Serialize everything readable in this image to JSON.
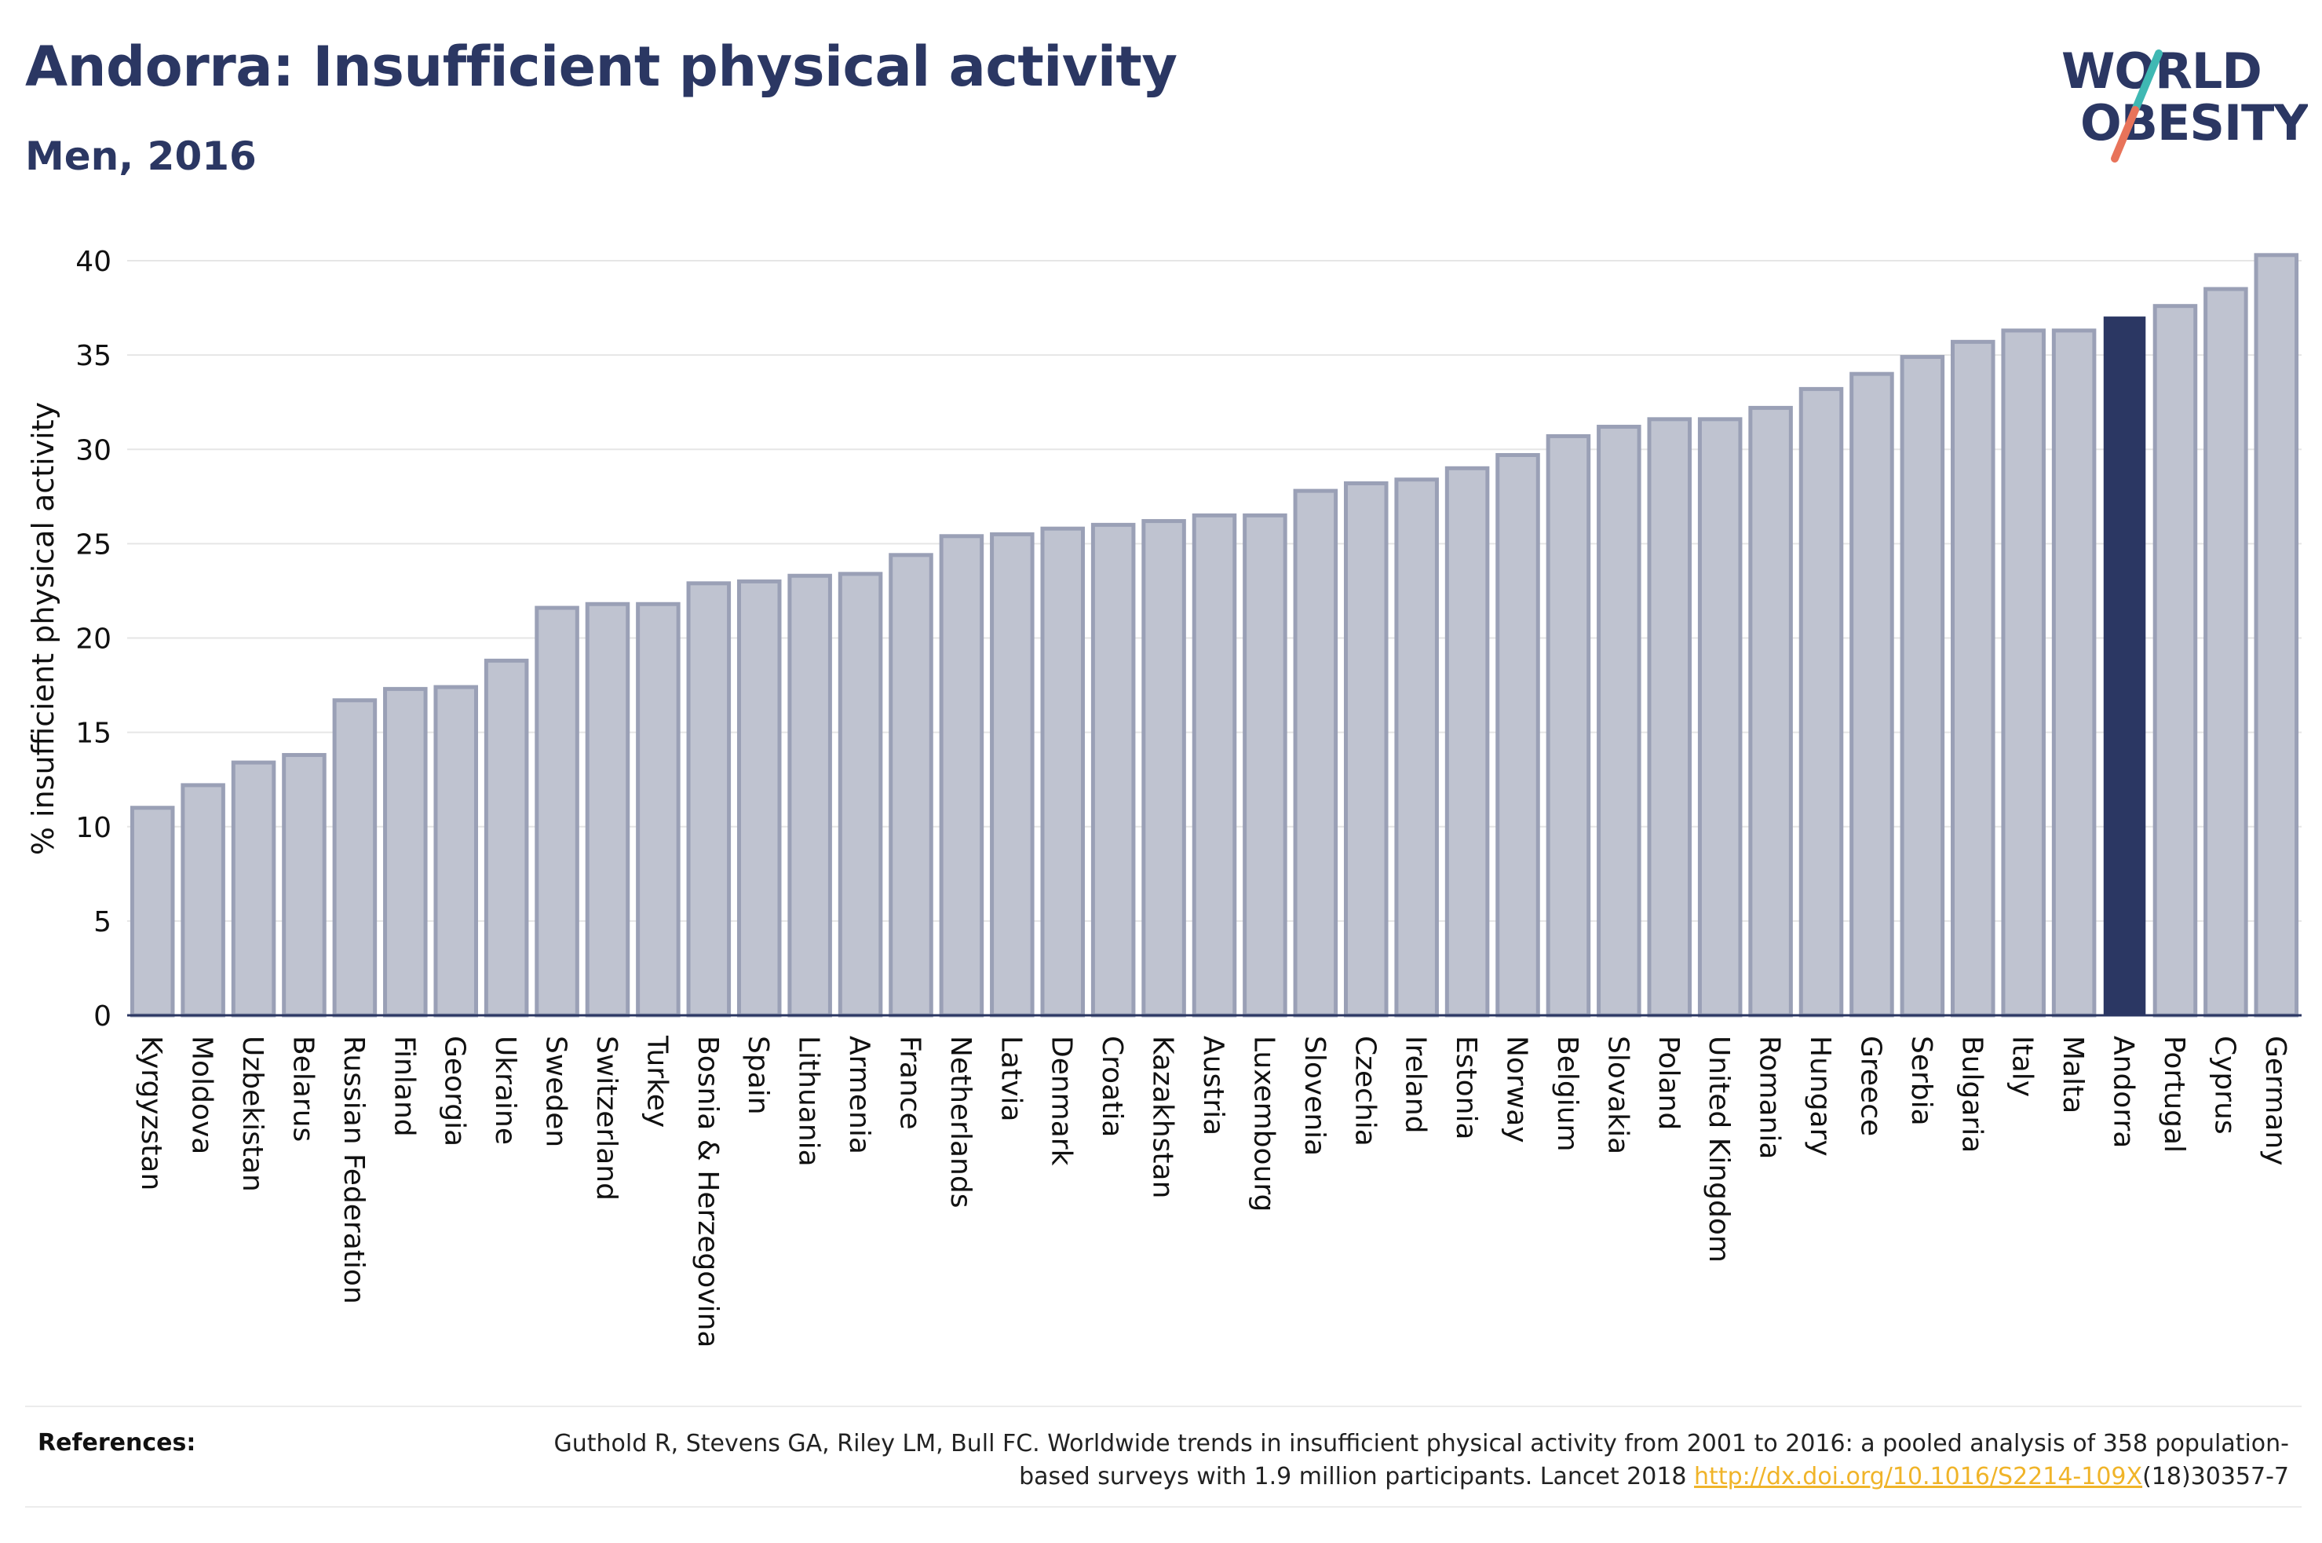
{
  "header": {
    "title": "Andorra: Insufficient physical activity",
    "subtitle": "Men, 2016"
  },
  "logo": {
    "line1": "WORLD",
    "line2": "OBESITY",
    "brand_color": "#2b3763",
    "slash_top_color": "#3fb8b3",
    "slash_bottom_color": "#e8735a"
  },
  "chart_data": {
    "type": "bar",
    "ylabel": "% insufficient physical activity",
    "ylim": [
      0,
      41
    ],
    "yticks": [
      0,
      5,
      10,
      15,
      20,
      25,
      30,
      35,
      40
    ],
    "grid": true,
    "highlight": "Andorra",
    "bar_color": "#bfc3d0",
    "bar_border_color": "#9aa0b6",
    "highlight_color": "#2b3763",
    "categories": [
      "Kyrgyzstan",
      "Moldova",
      "Uzbekistan",
      "Belarus",
      "Russian Federation",
      "Finland",
      "Georgia",
      "Ukraine",
      "Sweden",
      "Switzerland",
      "Turkey",
      "Bosnia & Herzegovina",
      "Spain",
      "Lithuania",
      "Armenia",
      "France",
      "Netherlands",
      "Latvia",
      "Denmark",
      "Croatia",
      "Kazakhstan",
      "Austria",
      "Luxembourg",
      "Slovenia",
      "Czechia",
      "Ireland",
      "Estonia",
      "Norway",
      "Belgium",
      "Slovakia",
      "Poland",
      "United Kingdom",
      "Romania",
      "Hungary",
      "Greece",
      "Serbia",
      "Bulgaria",
      "Italy",
      "Malta",
      "Andorra",
      "Portugal",
      "Cyprus",
      "Germany"
    ],
    "values": [
      11.0,
      12.2,
      13.4,
      13.8,
      16.7,
      17.3,
      17.4,
      18.8,
      21.6,
      21.8,
      21.8,
      22.9,
      23.0,
      23.3,
      23.4,
      24.4,
      25.4,
      25.5,
      25.8,
      26.0,
      26.2,
      26.5,
      26.5,
      27.8,
      28.2,
      28.4,
      29.0,
      29.7,
      30.7,
      31.2,
      31.6,
      31.6,
      32.2,
      33.2,
      34.0,
      34.9,
      35.7,
      36.3,
      36.3,
      37.0,
      37.6,
      38.5,
      40.3
    ]
  },
  "references": {
    "label": "References:",
    "text_before": "Guthold R, Stevens GA, Riley LM, Bull FC. Worldwide trends in insufficient physical activity from 2001 to 2016: a pooled analysis of 358 population-based surveys with 1.9 million participants. Lancet 2018 ",
    "link": "http://dx.doi.org/10.1016/S2214-109X",
    "text_after": "(18)30357-7"
  }
}
